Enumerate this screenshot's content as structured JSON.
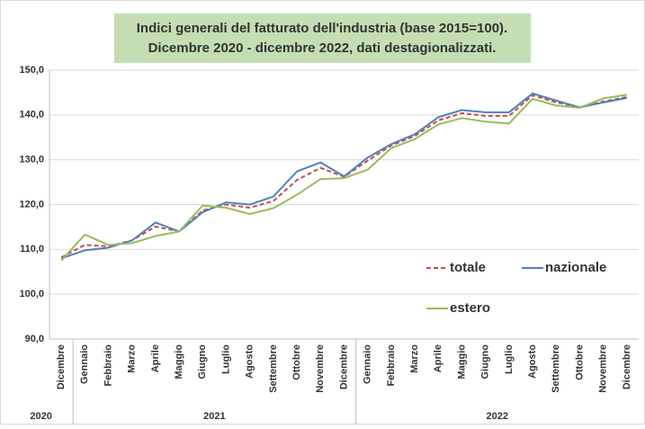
{
  "chart_data": {
    "type": "line",
    "title": [
      "Indici generali del fatturato dell'industria (base 2015=100).",
      "Dicembre 2020 - dicembre 2022, dati destagionalizzati."
    ],
    "categories": [
      "Dicembre",
      "Gennaio",
      "Febbraio",
      "Marzo",
      "Aprile",
      "Maggio",
      "Giugno",
      "Luglio",
      "Agosto",
      "Settembre",
      "Ottobre",
      "Novembre",
      "Dicembre",
      "Gennaio",
      "Febbraio",
      "Marzo",
      "Aprile",
      "Maggio",
      "Giugno",
      "Luglio",
      "Agosto",
      "Settembre",
      "Ottobre",
      "Novembre",
      "Dicembre"
    ],
    "category_groups": [
      {
        "name": "2020",
        "count": 1
      },
      {
        "name": "2021",
        "count": 12
      },
      {
        "name": "2022",
        "count": 12
      }
    ],
    "series": [
      {
        "name": "totale",
        "color": "#c0504d",
        "line_style": "dashed",
        "values": [
          108.2,
          111,
          110.7,
          112,
          115.1,
          114,
          118.7,
          120,
          119.3,
          120.8,
          125.5,
          128.2,
          126.2,
          129.8,
          133.2,
          135.3,
          138.8,
          140.4,
          139.8,
          139.8,
          144.4,
          142.8,
          141.7,
          143,
          144
        ]
      },
      {
        "name": "nazionale",
        "color": "#4f81bd",
        "line_style": "solid",
        "values": [
          108,
          109.8,
          110.4,
          112,
          116,
          114,
          118.3,
          120.5,
          120,
          121.8,
          127.4,
          129.4,
          126.3,
          130.5,
          133.5,
          135.7,
          139.5,
          141.1,
          140.6,
          140.6,
          144.8,
          143.2,
          141.7,
          142.8,
          143.8
        ]
      },
      {
        "name": "estero",
        "color": "#9bbb59",
        "line_style": "solid",
        "values": [
          107.5,
          113.3,
          111,
          111.4,
          113,
          114,
          119.8,
          119.3,
          117.9,
          119.2,
          122.2,
          125.7,
          125.9,
          127.8,
          132.6,
          134.6,
          137.9,
          139.3,
          138.5,
          138.1,
          143.6,
          142.1,
          141.6,
          143.7,
          144.5
        ]
      }
    ],
    "ylim": [
      90,
      150
    ],
    "yticks": [
      {
        "value": 90,
        "label": "90,0"
      },
      {
        "value": 100,
        "label": "100,0"
      },
      {
        "value": 110,
        "label": "110,0"
      },
      {
        "value": 120,
        "label": "120,0"
      },
      {
        "value": 130,
        "label": "130,0"
      },
      {
        "value": 140,
        "label": "140,0"
      },
      {
        "value": 150,
        "label": "150,0"
      }
    ],
    "grid": true
  }
}
